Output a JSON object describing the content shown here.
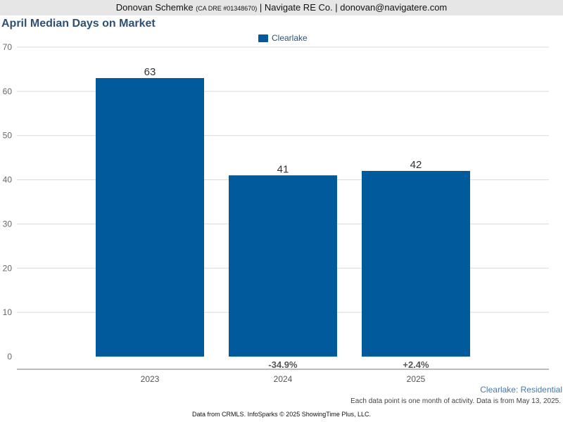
{
  "header": {
    "agent_name": "Donovan Schemke",
    "license": "(CA DRE #01348670)",
    "company_contact": "| Navigate RE Co. | donovan@navigatere.com"
  },
  "chart_data": {
    "type": "bar",
    "title": "April Median Days on Market",
    "categories": [
      "2023",
      "2024",
      "2025"
    ],
    "series": [
      {
        "name": "Clearlake",
        "values": [
          63,
          41,
          42
        ],
        "color": "#005a9c"
      }
    ],
    "value_labels": [
      "63",
      "41",
      "42"
    ],
    "change_labels": [
      "",
      "-34.9%",
      "+2.4%"
    ],
    "yticks": [
      0,
      10,
      20,
      30,
      40,
      50,
      60,
      70
    ],
    "ylim": [
      0,
      70
    ],
    "grid": true,
    "legend": "top-center",
    "subtitle": "Clearlake: Residential"
  },
  "footnote": "Each data point is one month of activity. Data is from May 13, 2025.",
  "source": "Data from CRMLS. InfoSparks © 2025 ShowingTime Plus, LLC."
}
